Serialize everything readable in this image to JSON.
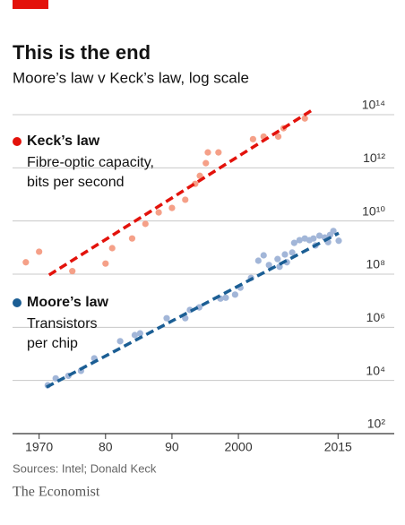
{
  "chart_data": {
    "type": "scatter",
    "title": "This is the end",
    "subtitle": "Moore’s law v Keck’s law, log scale",
    "source": "Sources: Intel; Donald Keck",
    "brand": "The Economist",
    "log_y": true,
    "grid": true,
    "xlim": [
      1966,
      2024
    ],
    "ylim": [
      100,
      100000000000000
    ],
    "xticks": [
      1970,
      {
        "value": 1980,
        "label": "80"
      },
      {
        "value": 1990,
        "label": "90"
      },
      2000,
      2015
    ],
    "yticks": [
      {
        "value": 100,
        "label": "10²"
      },
      {
        "value": 10000,
        "label": "10⁴"
      },
      {
        "value": 1000000,
        "label": "10⁶"
      },
      {
        "value": 100000000,
        "label": "10⁸"
      },
      {
        "value": 10000000000,
        "label": "10¹⁰"
      },
      {
        "value": 1000000000000,
        "label": "10¹²"
      },
      {
        "value": 100000000000000,
        "label": "10¹⁴"
      }
    ],
    "series": [
      {
        "name": "Keck’s law",
        "description": [
          "Fibre-optic capacity,",
          "bits per second"
        ],
        "color": "#e3120b",
        "point_color": "#f5a088",
        "x": [
          1968,
          1970,
          1975,
          1980,
          1981,
          1984,
          1986,
          1988,
          1990,
          1992,
          1993.5,
          1994.2,
          1995.1,
          1995.4,
          1997,
          2002.2,
          2003.8,
          2006,
          2006.8,
          2010
        ],
        "values": [
          280000000.0,
          700000000.0,
          130000000.0,
          250000000.0,
          950000000.0,
          2200000000.0,
          7800000000.0,
          21000000000.0,
          31000000000.0,
          63000000000.0,
          250000000000.0,
          500000000000.0,
          1500000000000.0,
          3800000000000.0,
          3800000000000.0,
          12000000000000.0,
          15000000000000.0,
          15000000000000.0,
          31000000000000.0,
          72000000000000.0
        ],
        "trend": {
          "x": [
            1971.5,
            2011.3
          ],
          "values": [
            93000000.0,
            160000000000000.0
          ]
        }
      },
      {
        "name": "Moore’s law",
        "description": [
          "Transistors",
          "per chip"
        ],
        "color": "#1b5e94",
        "point_color": "#a2b6d8",
        "x": [
          1971.3,
          1972.5,
          1974.4,
          1976.3,
          1978.3,
          1982.2,
          1984.4,
          1985.2,
          1989.2,
          1992,
          1992.7,
          1994.1,
          1997.3,
          1998.1,
          1999.5,
          2000.3,
          2001.9,
          2003,
          2003.8,
          2004.6,
          2005.9,
          2006.2,
          2007,
          2007.3,
          2008.1,
          2008.4,
          2009.2,
          2010,
          2010.7,
          2011.3,
          2011.6,
          2012.2,
          2013,
          2013.5,
          2013.8,
          2014.3,
          2015.1
        ],
        "values": [
          6600.0,
          12000.0,
          15000.0,
          23000.0,
          68000.0,
          300000.0,
          510000.0,
          590000.0,
          2200000.0,
          2200000.0,
          4500000.0,
          5600000.0,
          12000000.0,
          13000000.0,
          17000000.0,
          31000000.0,
          72000000.0,
          320000000.0,
          510000000.0,
          220000000.0,
          370000000.0,
          190000000.0,
          550000000.0,
          280000000.0,
          650000000.0,
          1500000000.0,
          1900000000.0,
          2200000000.0,
          1900000000.0,
          2200000000.0,
          1200000000.0,
          2800000000.0,
          2400000000.0,
          1600000000.0,
          3000000000.0,
          4200000000.0,
          1800000000.0
        ],
        "trend": {
          "x": [
            1971.1,
            2015.1
          ],
          "values": [
            5600.0,
            3500000000.0
          ]
        }
      }
    ]
  }
}
